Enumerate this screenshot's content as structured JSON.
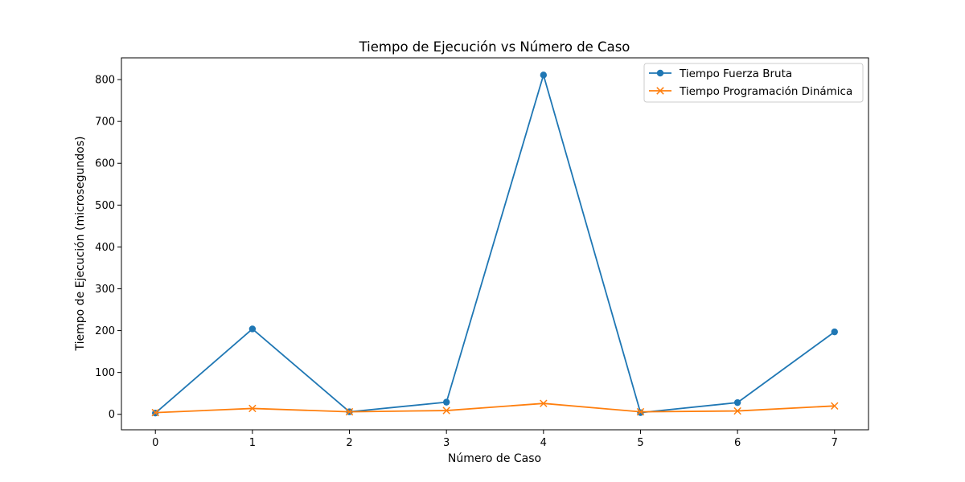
{
  "chart_data": {
    "type": "line",
    "title": "Tiempo de Ejecución vs Número de Caso",
    "xlabel": "Número de Caso",
    "ylabel": "Tiempo de Ejecución (microsegundos)",
    "x": [
      0,
      1,
      2,
      3,
      4,
      5,
      6,
      7
    ],
    "xlim": [
      -0.35,
      7.35
    ],
    "ylim": [
      -37,
      852
    ],
    "xticks": [
      0,
      1,
      2,
      3,
      4,
      5,
      6,
      7
    ],
    "yticks": [
      0,
      100,
      200,
      300,
      400,
      500,
      600,
      700,
      800
    ],
    "grid": false,
    "legend_position": "upper right",
    "series": [
      {
        "name": "Tiempo Fuerza Bruta",
        "values": [
          3,
          204,
          6,
          29,
          811,
          4,
          28,
          197
        ],
        "color": "#1f77b4",
        "marker": "circle"
      },
      {
        "name": "Tiempo Programación Dinámica",
        "values": [
          4,
          14,
          6,
          9,
          26,
          6,
          8,
          20
        ],
        "color": "#ff7f0e",
        "marker": "x"
      }
    ]
  }
}
